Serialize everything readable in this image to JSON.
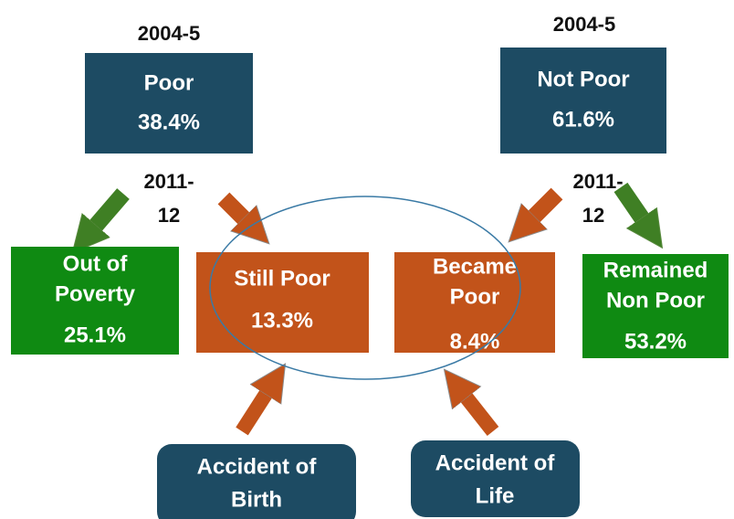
{
  "left": {
    "year": "2004-5",
    "box": {
      "label": "Poor",
      "value": "38.4%"
    },
    "next_year": [
      "2011-",
      "12"
    ]
  },
  "right": {
    "year": "2004-5",
    "box": {
      "label": "Not Poor",
      "value": "61.6%"
    },
    "next_year": [
      "2011-",
      "12"
    ]
  },
  "outcomes": [
    {
      "label": [
        "Out of",
        "Poverty"
      ],
      "value": "25.1%"
    },
    {
      "label": [
        "Still Poor"
      ],
      "value": "13.3%"
    },
    {
      "label": [
        "Became",
        "Poor"
      ],
      "value": "8.4%"
    },
    {
      "label": [
        "Remained",
        "Non Poor"
      ],
      "value": "53.2%"
    }
  ],
  "causes": [
    {
      "label": [
        "Accident of",
        "Birth"
      ]
    },
    {
      "label": [
        "Accident of",
        "Life"
      ]
    }
  ]
}
